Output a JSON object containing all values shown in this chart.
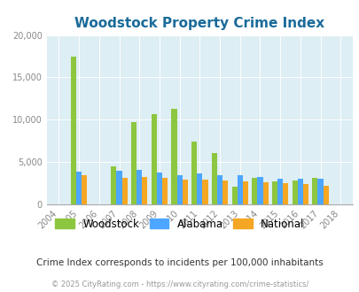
{
  "title": "Woodstock Property Crime Index",
  "subtitle": "Crime Index corresponds to incidents per 100,000 inhabitants",
  "footer": "© 2025 CityRating.com - https://www.cityrating.com/crime-statistics/",
  "years": [
    2004,
    2005,
    2006,
    2007,
    2008,
    2009,
    2010,
    2011,
    2012,
    2013,
    2014,
    2015,
    2016,
    2017,
    2018
  ],
  "woodstock": [
    0,
    17500,
    0,
    4500,
    9700,
    10700,
    11300,
    7400,
    6050,
    2100,
    3100,
    2750,
    2850,
    3100,
    0
  ],
  "alabama": [
    0,
    3900,
    0,
    4000,
    4100,
    3800,
    3500,
    3700,
    3500,
    3400,
    3200,
    3000,
    3000,
    3000,
    0
  ],
  "national": [
    0,
    3500,
    0,
    3100,
    3200,
    3100,
    2950,
    2900,
    2850,
    2700,
    2600,
    2500,
    2450,
    2200,
    0
  ],
  "woodstock_color": "#8dc63f",
  "alabama_color": "#4da6ff",
  "national_color": "#f5a623",
  "bg_color": "#ddeef4",
  "title_color": "#1a6b9a",
  "subtitle_color": "#333333",
  "footer_color": "#999999",
  "ylim": [
    0,
    20000
  ],
  "yticks": [
    0,
    5000,
    10000,
    15000,
    20000
  ],
  "bar_width": 0.27
}
